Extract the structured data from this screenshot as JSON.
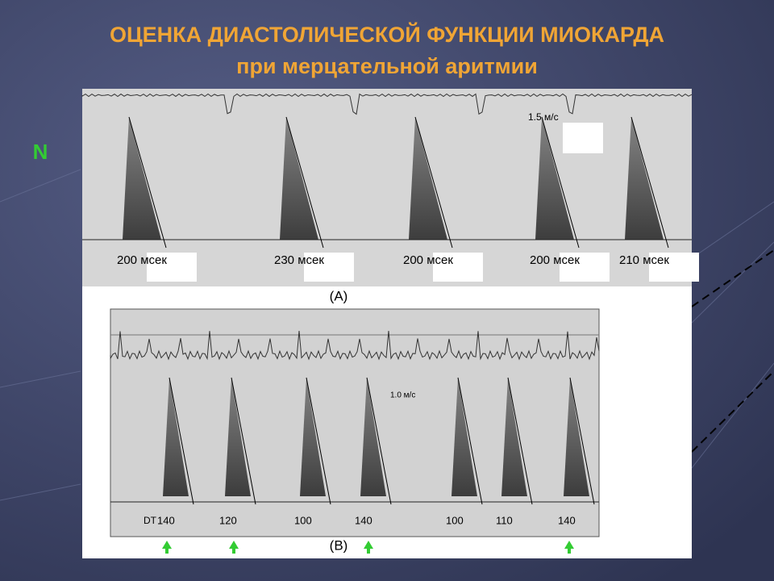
{
  "header": {
    "title": "ОЦЕНКА ДИАСТОЛИЧЕСКОЙ ФУНКЦИИ МИОКАРДА",
    "subtitle": "при мерцательной аритмии"
  },
  "marker": "N",
  "panel_a": {
    "caption": "(A)",
    "scale": "1.5 м/с",
    "labels": [
      "200 мсек",
      "230 мсек",
      "200 мсек",
      "200 мсек",
      "210 мсек"
    ]
  },
  "panel_b": {
    "caption": "(B)",
    "scale": "1.0 м/с",
    "dt": "DT",
    "labels": [
      "140",
      "120",
      "100",
      "140",
      "100",
      "110",
      "140"
    ]
  }
}
